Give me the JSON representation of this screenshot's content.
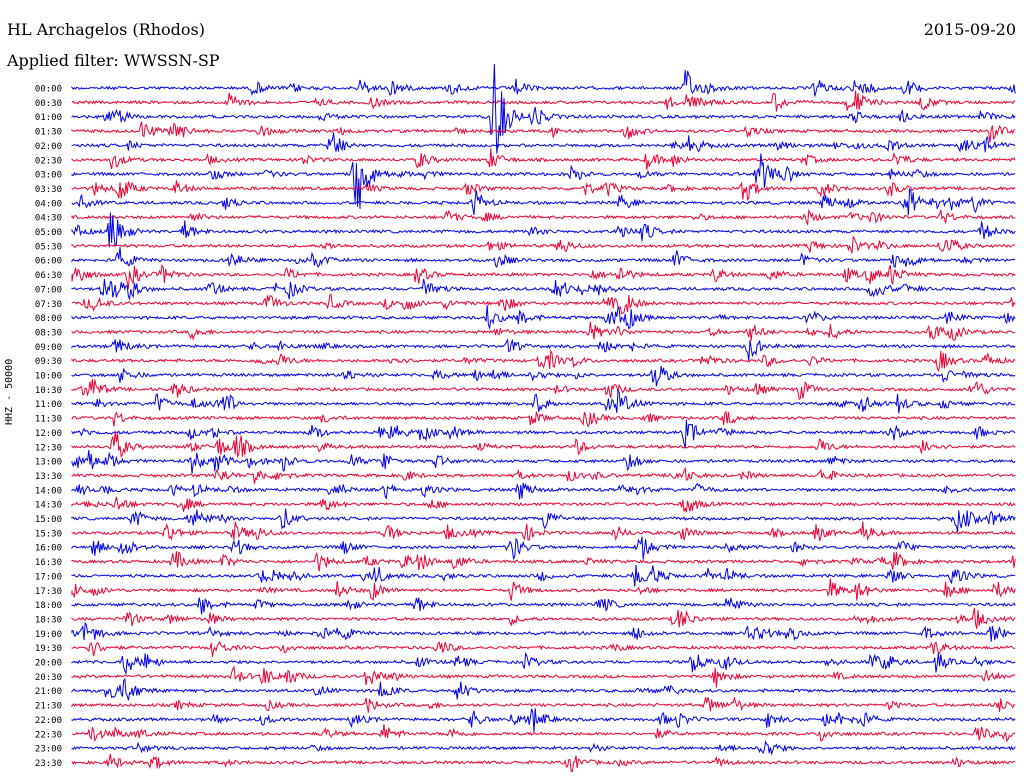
{
  "header": {
    "title": "HL Archagelos (Rhodos)",
    "date": "2015-09-20",
    "filter": "Applied filter: WWSSN-SP"
  },
  "chart_data": {
    "type": "helicorder",
    "channel_label": "HHZ - 50000",
    "line_times": [
      "00:00",
      "00:30",
      "01:00",
      "01:30",
      "02:00",
      "02:30",
      "03:00",
      "03:30",
      "04:00",
      "04:30",
      "05:00",
      "05:30",
      "06:00",
      "06:30",
      "07:00",
      "07:30",
      "08:00",
      "08:30",
      "09:00",
      "09:30",
      "10:00",
      "10:30",
      "11:00",
      "11:30",
      "12:00",
      "12:30",
      "13:00",
      "13:30",
      "14:00",
      "14:30",
      "15:00",
      "15:30",
      "16:00",
      "16:30",
      "17:00",
      "17:30",
      "18:00",
      "18:30",
      "19:00",
      "19:30",
      "20:00",
      "20:30",
      "21:00",
      "21:30",
      "22:00",
      "22:30",
      "23:00",
      "23:30"
    ],
    "colors": [
      "#0000ee",
      "#ee0033"
    ],
    "events": [
      {
        "line": 0,
        "minute": 19.5,
        "amp": 2.2
      },
      {
        "line": 0,
        "minute": 12.0,
        "amp": 0.9
      },
      {
        "line": 1,
        "minute": 27.0,
        "amp": 1.0
      },
      {
        "line": 2,
        "minute": 13.4,
        "amp": 6.5
      },
      {
        "line": 3,
        "minute": 3.2,
        "amp": 1.8
      },
      {
        "line": 4,
        "minute": 8.2,
        "amp": 2.0
      },
      {
        "line": 5,
        "minute": 13.3,
        "amp": 1.2
      },
      {
        "line": 6,
        "minute": 9.0,
        "amp": 5.5
      },
      {
        "line": 6,
        "minute": 21.8,
        "amp": 3.0
      },
      {
        "line": 7,
        "minute": 23.8,
        "amp": 1.2
      },
      {
        "line": 8,
        "minute": 12.8,
        "amp": 1.5
      },
      {
        "line": 8,
        "minute": 26.5,
        "amp": 1.3
      },
      {
        "line": 10,
        "minute": 1.2,
        "amp": 1.6
      },
      {
        "line": 11,
        "minute": 15.5,
        "amp": 1.2
      },
      {
        "line": 12,
        "minute": 1.5,
        "amp": 1.5
      },
      {
        "line": 13,
        "minute": 1.8,
        "amp": 1.6
      },
      {
        "line": 14,
        "minute": 1.0,
        "amp": 1.4
      },
      {
        "line": 14,
        "minute": 11.2,
        "amp": 1.6
      },
      {
        "line": 15,
        "minute": 17.5,
        "amp": 1.5
      },
      {
        "line": 16,
        "minute": 13.2,
        "amp": 1.4
      },
      {
        "line": 18,
        "minute": 21.5,
        "amp": 1.6
      },
      {
        "line": 20,
        "minute": 18.5,
        "amp": 2.0
      },
      {
        "line": 21,
        "minute": 0.6,
        "amp": 1.3
      },
      {
        "line": 22,
        "minute": 2.7,
        "amp": 1.2
      },
      {
        "line": 24,
        "minute": 19.5,
        "amp": 1.8
      },
      {
        "line": 26,
        "minute": 3.8,
        "amp": 1.4
      },
      {
        "line": 28,
        "minute": 14.2,
        "amp": 1.3
      },
      {
        "line": 31,
        "minute": 3.0,
        "amp": 1.3
      },
      {
        "line": 33,
        "minute": 7.8,
        "amp": 1.2
      },
      {
        "line": 34,
        "minute": 28.0,
        "amp": 1.6
      },
      {
        "line": 36,
        "minute": 4.1,
        "amp": 1.3
      },
      {
        "line": 38,
        "minute": 29.2,
        "amp": 1.3
      },
      {
        "line": 40,
        "minute": 19.7,
        "amp": 1.4
      },
      {
        "line": 41,
        "minute": 9.4,
        "amp": 1.5
      },
      {
        "line": 44,
        "minute": 25.0,
        "amp": 1.2
      },
      {
        "line": 47,
        "minute": 15.8,
        "amp": 1.4
      }
    ]
  }
}
